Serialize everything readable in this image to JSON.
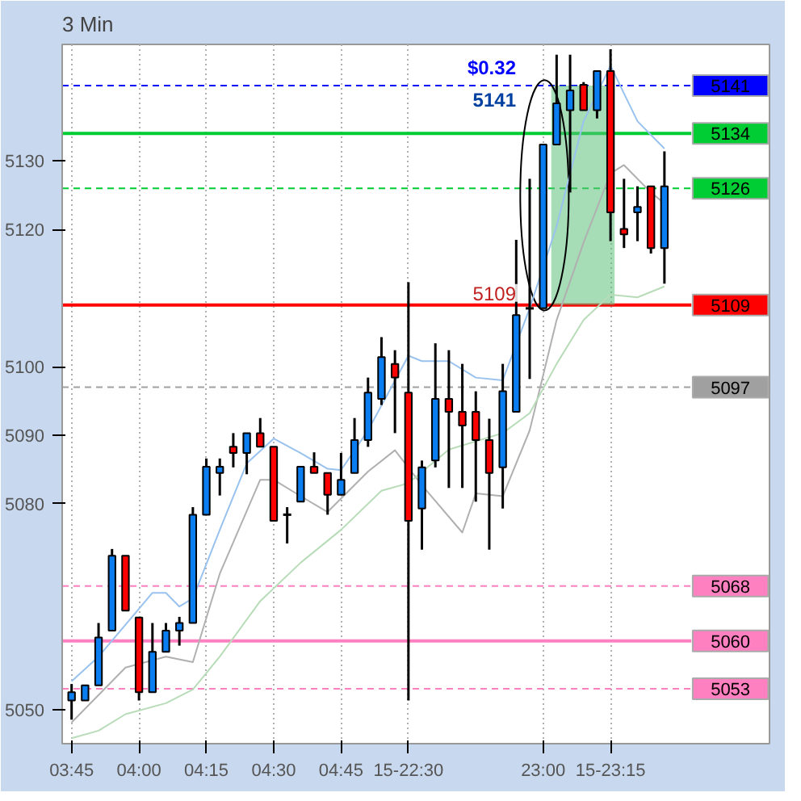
{
  "chart_data": {
    "type": "candlestick",
    "title": "3 Min",
    "categories": [
      "03:45",
      null,
      null,
      null,
      null,
      "04:00",
      null,
      null,
      null,
      null,
      "04:15",
      null,
      null,
      null,
      null,
      "04:30",
      null,
      null,
      null,
      null,
      "04:45",
      null,
      null,
      null,
      null,
      "15-22:30",
      null,
      null,
      null,
      null,
      null,
      null,
      null,
      null,
      null,
      "23:00",
      null,
      null,
      null,
      null,
      "15-23:15",
      null,
      null,
      null,
      null
    ],
    "ohlc": [
      [
        5051.3,
        5053.7,
        5048.5,
        5052.5
      ],
      [
        5051.3,
        5053.5,
        5051.3,
        5053.5
      ],
      [
        5053.5,
        5062.6,
        5053.5,
        5060.5
      ],
      [
        5061.5,
        5073.4,
        5061.5,
        5072.4
      ],
      [
        5072.4,
        5072.4,
        5064.4,
        5064.4
      ],
      [
        5063.4,
        5063.4,
        5051.3,
        5052.5
      ],
      [
        5052.5,
        5062.6,
        5052.5,
        5058.4
      ],
      [
        5058.4,
        5062.6,
        5058.4,
        5061.5
      ],
      [
        5061.5,
        5063.5,
        5059.3,
        5062.6
      ],
      [
        5062.6,
        5079.5,
        5062.6,
        5078.4
      ],
      [
        5078.4,
        5086.6,
        5078.4,
        5085.4
      ],
      [
        5084.5,
        5086.6,
        5081.2,
        5085.4
      ],
      [
        5088.3,
        5090.3,
        5085.3,
        5087.4
      ],
      [
        5087.4,
        5090.3,
        5084.3,
        5090.3
      ],
      [
        5090.3,
        5092.5,
        5088.3,
        5088.3
      ],
      [
        5088.3,
        5088.3,
        5077.5,
        5077.5
      ],
      [
        5078.4,
        5079.5,
        5074.2,
        5078.4
      ],
      [
        5080.3,
        5085.4,
        5080.3,
        5085.4
      ],
      [
        5085.4,
        5087.5,
        5084.5,
        5084.5
      ],
      [
        5084.5,
        5084.5,
        5078.4,
        5081.3
      ],
      [
        5081.3,
        5087.4,
        5081.3,
        5083.5
      ],
      [
        5084.5,
        5092.5,
        5084.5,
        5089.3
      ],
      [
        5089.3,
        5098.4,
        5088.3,
        5096.2
      ],
      [
        5095.3,
        5104.3,
        5094.4,
        5101.4
      ],
      [
        5100.4,
        5102.4,
        5090.3,
        5098.4
      ],
      [
        5096.2,
        5112.3,
        5051.3,
        5077.5
      ],
      [
        5079.3,
        5086.3,
        5073.3,
        5085.3
      ],
      [
        5086.3,
        5103.4,
        5085.3,
        5095.3
      ],
      [
        5095.3,
        5102.4,
        5082.3,
        5093.4
      ],
      [
        5093.4,
        5100.4,
        5082.3,
        5091.4
      ],
      [
        5093.4,
        5096.4,
        5080.3,
        5089.3
      ],
      [
        5089.3,
        5092.4,
        5073.3,
        5084.5
      ],
      [
        5085.3,
        5100.4,
        5079.3,
        5096.4
      ],
      [
        5093.4,
        5118.5,
        5093.4,
        5107.5
      ],
      [
        5108.5,
        5127.4,
        5098.2,
        5108.5
      ],
      [
        5108.5,
        5132.4,
        5108.5,
        5132.4
      ],
      [
        5132.4,
        5145.5,
        5132.4,
        5138.4
      ],
      [
        5137.4,
        5145.5,
        5125.4,
        5140.3
      ],
      [
        5141.1,
        5141.5,
        5137.4,
        5137.4
      ],
      [
        5137.4,
        5143.1,
        5136.2,
        5143.1
      ],
      [
        5143.1,
        5146.3,
        5118.3,
        5122.5
      ],
      [
        5120.1,
        5127.4,
        5117.3,
        5119.3
      ],
      [
        5122.5,
        5126.3,
        5118.3,
        5123.3
      ],
      [
        5126.3,
        5126.3,
        5116.5,
        5117.3
      ],
      [
        5117.3,
        5131.4,
        5112.1,
        5126.3
      ]
    ],
    "colors": [
      "#0a7ef0",
      "#0a7ef0",
      "#0a7ef0",
      "#0a7ef0",
      "#ff0000",
      "#ff0000",
      "#0a7ef0",
      "#0a7ef0",
      "#0a7ef0",
      "#0a7ef0",
      "#0a7ef0",
      "#0a7ef0",
      "#ff0000",
      "#0a7ef0",
      "#ff0000",
      "#ff0000",
      "#000000",
      "#0a7ef0",
      "#ff0000",
      "#ff0000",
      "#0a7ef0",
      "#0a7ef0",
      "#0a7ef0",
      "#0a7ef0",
      "#ff0000",
      "#ff0000",
      "#0a7ef0",
      "#0a7ef0",
      "#ff0000",
      "#ff0000",
      "#ff0000",
      "#ff0000",
      "#0a7ef0",
      "#0a7ef0",
      "#000000",
      "#0a7ef0",
      "#0a7ef0",
      "#0a7ef0",
      "#ff0000",
      "#0a7ef0",
      "#ff0000",
      "#ff0000",
      "#0a7ef0",
      "#ff0000",
      "#0a7ef0"
    ],
    "series": [
      {
        "type": "line",
        "color": "#99c2ee",
        "values": [
          5054.1,
          null,
          5057.7,
          null,
          null,
          null,
          5067.0,
          5067.0,
          5065.0,
          5066.2,
          null,
          5076.2,
          null,
          5085.9,
          null,
          5089.5,
          null,
          5087.4,
          null,
          5085.1,
          5084.9,
          null,
          5090.7,
          null,
          null,
          5101.6,
          5100.8,
          null,
          5100.8,
          null,
          5098.4,
          null,
          5098.0,
          null,
          5108.5,
          null,
          5120.5,
          null,
          5135.8,
          null,
          5143.9,
          null,
          5135.8,
          null,
          5131.8
        ]
      },
      {
        "type": "line",
        "color": "#b0b0b0",
        "values": [
          5048.1,
          5050.1,
          null,
          null,
          5056.1,
          null,
          null,
          5057.7,
          null,
          5056.9,
          null,
          5069.8,
          null,
          null,
          5083.5,
          5083.5,
          null,
          5081.1,
          null,
          5078.8,
          null,
          null,
          5084.7,
          null,
          5087.8,
          null,
          5082.7,
          null,
          null,
          5075.8,
          5081.5,
          null,
          5081.1,
          null,
          5090.7,
          null,
          5106.8,
          null,
          5118.1,
          null,
          5128.2,
          5129.4,
          null,
          5125.4,
          5123.8
        ]
      },
      {
        "type": "line",
        "color": "#b8dcb8",
        "values": [
          5045.8,
          null,
          5046.9,
          null,
          5049.3,
          null,
          null,
          5050.9,
          null,
          5052.9,
          null,
          5057.7,
          null,
          null,
          5065.8,
          null,
          null,
          5071.4,
          null,
          null,
          5076.2,
          null,
          null,
          5081.9,
          null,
          5083.0,
          null,
          null,
          5087.9,
          null,
          null,
          null,
          5090.3,
          null,
          5093.2,
          null,
          5100.4,
          null,
          5106.8,
          null,
          5110.5,
          null,
          5110.1,
          null,
          5111.7
        ]
      }
    ],
    "ylim": [
      5045,
      5147
    ],
    "yticks": [
      5050,
      5080,
      5090,
      5100,
      5120,
      5130
    ],
    "grid": "x",
    "ref_lines": [
      {
        "axis": "y",
        "value": 5141,
        "label": "5141",
        "color": "#0000ff",
        "line_style": "dashed"
      },
      {
        "axis": "y",
        "value": 5134,
        "label": "5134",
        "color": "#00cc33",
        "line_style": "solid"
      },
      {
        "axis": "y",
        "value": 5126,
        "label": "5126",
        "color": "#00cc33",
        "line_style": "dashed"
      },
      {
        "axis": "y",
        "value": 5109,
        "label": "5109",
        "color": "#ff0000",
        "line_style": "solid"
      },
      {
        "axis": "y",
        "value": 5097,
        "label": "5097",
        "color": "#a0a0a0",
        "line_style": "dashed"
      },
      {
        "axis": "y",
        "value": 5068,
        "label": "5068",
        "color": "#ff80c0",
        "line_style": "dashed"
      },
      {
        "axis": "y",
        "value": 5060,
        "label": "5060",
        "color": "#ff80c0",
        "line_style": "solid"
      },
      {
        "axis": "y",
        "value": 5053,
        "label": "5053",
        "color": "#ff80c0",
        "line_style": "dashed"
      }
    ],
    "bands": [
      {
        "axis": "y",
        "from": 5109,
        "to": 5141,
        "color": "#5cc07a"
      }
    ],
    "annotations": [
      {
        "text": "$0.32",
        "x": "23:00",
        "y": 5141
      },
      {
        "text": "5141",
        "x": "23:00",
        "y": 5141
      },
      {
        "text": "5109",
        "x": "23:00",
        "y": 5109
      }
    ]
  }
}
